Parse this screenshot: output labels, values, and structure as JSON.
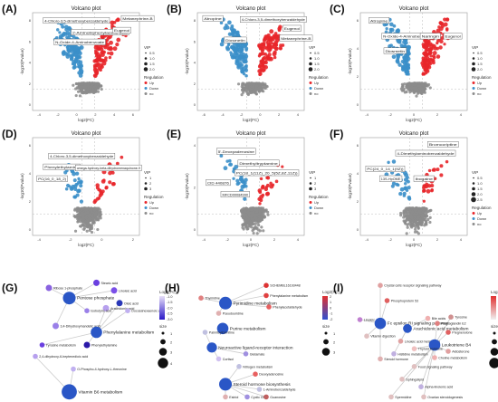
{
  "panels": [
    {
      "letter": "(A)",
      "title": "Volcano plot",
      "xlabel": "log2(FC)",
      "ylabel": "-log10(Pvalue)",
      "xticks": [
        "-4",
        "-2",
        "0",
        "2",
        "4",
        "6"
      ],
      "yticks": [
        "0",
        "2",
        "4",
        "6",
        "8"
      ],
      "annotations": [
        "4-Chloro-3,5-dimethoxybenzaldehyde",
        "2-Aminobiphenylacetic acid",
        "N-Oxide-4-Aminobenzoate",
        "Eugenol",
        "Metanephrine-B"
      ],
      "legend": {
        "vip_title": "VIP",
        "vip_values": [
          "0.5",
          "1.0",
          "1.5",
          "2.0"
        ],
        "reg_title": "Regulation",
        "reg_items": [
          "Up",
          "Down",
          "no"
        ]
      }
    },
    {
      "letter": "(B)",
      "title": "Volcano plot",
      "xlabel": "log2(FC)",
      "ylabel": "-log10(Pvalue)",
      "xticks": [
        "-6",
        "-4",
        "-2",
        "0",
        "2",
        "4"
      ],
      "yticks": [
        "0",
        "2",
        "4",
        "6",
        "8"
      ],
      "annotations": [
        "Atropine",
        "4-Chloro-3,5-dimethoxybenzaldehyde",
        "Diosmetin",
        "Eugenol",
        "Metanephrine-B"
      ],
      "legend": {
        "vip_title": "VIP",
        "vip_values": [
          "0.5",
          "1.0",
          "1.5",
          "2.0"
        ],
        "reg_title": "Regulation",
        "reg_items": [
          "Up",
          "Down",
          "no"
        ]
      }
    },
    {
      "letter": "(C)",
      "title": "Volcano plot",
      "xlabel": "log2(FC)",
      "ylabel": "-log10(Pvalue)",
      "xticks": [
        "-4",
        "-2",
        "0",
        "2",
        "4"
      ],
      "yticks": [
        "0",
        "2",
        "4",
        "6"
      ],
      "annotations": [
        "Atropine",
        "N-Oxide-4-Aminobenzoate",
        "Diosmetin",
        "Naringin",
        "Eugenol"
      ],
      "legend": {
        "vip_title": "VIP",
        "vip_values": [
          "0.5",
          "1.0",
          "1.5",
          "2.0"
        ],
        "reg_title": "Regulation",
        "reg_items": [
          "Up",
          "Down",
          "no"
        ]
      }
    },
    {
      "letter": "(D)",
      "title": "Volcano plot",
      "xlabel": "log2(FC)",
      "ylabel": "-log10(Pvalue)",
      "xticks": [
        "-4",
        "-2",
        "0",
        "2"
      ],
      "yticks": [
        "0",
        "2",
        "4",
        "6"
      ],
      "annotations": [
        "4-Chloro-3,5-dimethoxybenzaldehyde",
        "Phenylethylamine",
        "omega-hydroxy-beta-dihydromenaquinone-9",
        "PC(16_0_18_2)"
      ],
      "legend": {
        "vip_title": "VIP",
        "vip_values": [
          "1",
          "2",
          "3"
        ],
        "reg_title": "Regulation",
        "reg_items": [
          "Up",
          "Down",
          "no"
        ]
      }
    },
    {
      "letter": "(E)",
      "title": "Volcano plot",
      "xlabel": "log2(FC)",
      "ylabel": "-log10(Pvalue)",
      "xticks": [
        "-4",
        "-2",
        "0",
        "2",
        "4"
      ],
      "yticks": [
        "0",
        "2",
        "4"
      ],
      "annotations": [
        "5'-Deoxyadenosine",
        "Dimethyltryptamine",
        "PC(18_1(11Z)_20_5(5Z,8Z,11Z))",
        "CID 440876",
        "MFCD00084990"
      ],
      "legend": {
        "vip_title": "VIP",
        "vip_values": [
          "1",
          "2",
          "3"
        ],
        "reg_title": "Regulation",
        "reg_items": [
          "Up",
          "Down",
          "no"
        ]
      }
    },
    {
      "letter": "(F)",
      "title": "Volcano plot",
      "xlabel": "log2(FC)",
      "ylabel": "-log10(Pvalue)",
      "xticks": [
        "-4",
        "-2",
        "0",
        "2",
        "4"
      ],
      "yticks": [
        "0",
        "2",
        "4",
        "6"
      ],
      "annotations": [
        "Bromocriptine",
        "4-Dimethylaminobenzaldehyde",
        "PC(24_0_14_1(9Z))",
        "13S-HpOME",
        "Ibogaine"
      ],
      "legend": {
        "vip_title": "VIP",
        "vip_values": [
          "0.5",
          "1.0",
          "1.5",
          "2.0",
          "2.5"
        ],
        "reg_title": "Regulation",
        "reg_items": [
          "Up",
          "Down",
          "no"
        ]
      }
    }
  ],
  "networks": [
    {
      "letter": "(G)",
      "nodes": [
        "Ribose 1-phosphate",
        "Pentose phosphate",
        "Stearic acid",
        "Linoleic acid",
        "Oleic acid",
        "Arachidonic acid",
        "Docosahexaenoic acid",
        "Isobutyric acid",
        "3,4-Dihydroxymandelic acid",
        "Phenylalanine metabolism",
        "Tyrosine metabolism",
        "Phenylethylamine",
        "2,4-dihydroxy-6-heptenedioic acid",
        "O-Phospho-4-hydroxy-L-threonine",
        "Vitamin B6 metabolism"
      ],
      "legend": {
        "title": "Log2(FC)",
        "ticks": [
          "-1.0",
          "-1.5",
          "-2.0",
          "-2.5",
          "-3.0"
        ],
        "size_title": "size",
        "sizes": [
          "1",
          "2",
          "3",
          "4"
        ]
      }
    },
    {
      "letter": "(H)",
      "nodes": [
        "SCHEMBL16193448",
        "Thymidine",
        "Pyrimidine metabolism",
        "Pseudouridine",
        "Phenylalanine metabolism",
        "Phenylacetaldehyde",
        "Purine metabolism",
        "Palmitoylcarnitine",
        "Neuroactive ligand-receptor interaction",
        "Glutamate",
        "Cortisol",
        "Nitrogen metabolism",
        "Deoxyadenosine",
        "Steroid hormone biosynthesis",
        "1-Aminobenzaldehyde",
        "Estriol",
        "Cyclic GMP",
        "Guanosine"
      ],
      "legend": {
        "title": "Log2(FC)",
        "ticks": [
          "2",
          "1",
          "0",
          "-1",
          "-2"
        ],
        "size_title": "size",
        "sizes": [
          "1",
          "2",
          "3"
        ]
      }
    },
    {
      "letter": "(I)",
      "nodes": [
        "Crystal cells receptor signaling pathway",
        "Phosphoprotein 53",
        "Linoleic acid",
        "Fc epsilon RI signaling pathway",
        "Arachidonic acid metabolism",
        "Linoleic acid metabolism",
        "Vitamin digestion",
        "Bile acids",
        "Prostaglandin E2",
        "Pregnenolone",
        "Leukotriene B4",
        "Choline metabolism",
        "Tyrosine",
        "Histidine metabolism",
        "Steroid hormone",
        "Thyroid hormone",
        "Aldosterone",
        "Food signaling pathway",
        "Sphingolipid",
        "Alpha-linolenic acid",
        "Spermidine",
        "Ovarian steroidogenesis"
      ],
      "legend": {
        "title": "Log2(FC)",
        "ticks": [
          "4",
          "3",
          "2",
          "1",
          "0"
        ],
        "size_title": "size",
        "sizes": [
          "1",
          "2",
          "3",
          "4"
        ]
      }
    }
  ]
}
